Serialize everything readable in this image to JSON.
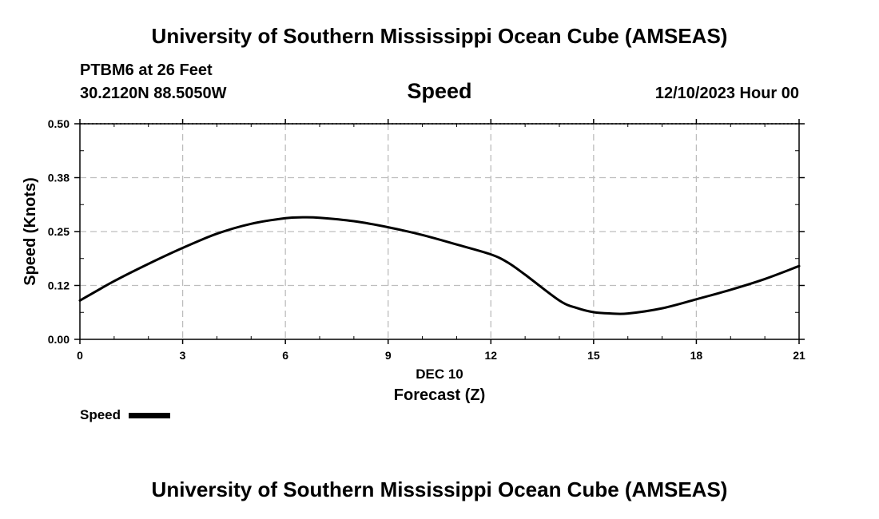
{
  "header": {
    "title": "University of Southern Mississippi Ocean Cube (AMSEAS)",
    "station": "PTBM6 at 26 Feet",
    "coords": "30.2120N  88.5050W",
    "datetime": "12/10/2023 Hour 00"
  },
  "footer": {
    "title": "University of Southern Mississippi Ocean Cube (AMSEAS)"
  },
  "chart_data": {
    "type": "line",
    "title": "Speed",
    "xlabel": "Forecast (Z)",
    "xlabel_date": "DEC 10",
    "ylabel": "Speed (Knots)",
    "xlim": [
      0,
      21
    ],
    "ylim": [
      0,
      0.5
    ],
    "x_ticks": [
      0,
      3,
      6,
      9,
      12,
      15,
      18,
      21
    ],
    "x_tick_labels": [
      "0",
      "3",
      "6",
      "9",
      "12",
      "15",
      "18",
      "21"
    ],
    "y_ticks": [
      0,
      0.125,
      0.25,
      0.375,
      0.5
    ],
    "y_tick_labels": [
      "0.00",
      "0.12",
      "0.25",
      "0.38",
      "0.50"
    ],
    "grid": true,
    "legend_position": "bottom-left",
    "series": [
      {
        "name": "Speed",
        "color": "#000000",
        "x": [
          0,
          1,
          2,
          3,
          4,
          5,
          6,
          6.5,
          7,
          8,
          9,
          10,
          11,
          12,
          12.5,
          13,
          14,
          14.5,
          15,
          15.5,
          16,
          17,
          18,
          19,
          20,
          21
        ],
        "values": [
          0.09,
          0.135,
          0.175,
          0.212,
          0.245,
          0.268,
          0.281,
          0.283,
          0.282,
          0.274,
          0.26,
          0.242,
          0.22,
          0.197,
          0.178,
          0.15,
          0.09,
          0.073,
          0.063,
          0.06,
          0.06,
          0.072,
          0.093,
          0.115,
          0.14,
          0.17
        ]
      }
    ]
  }
}
